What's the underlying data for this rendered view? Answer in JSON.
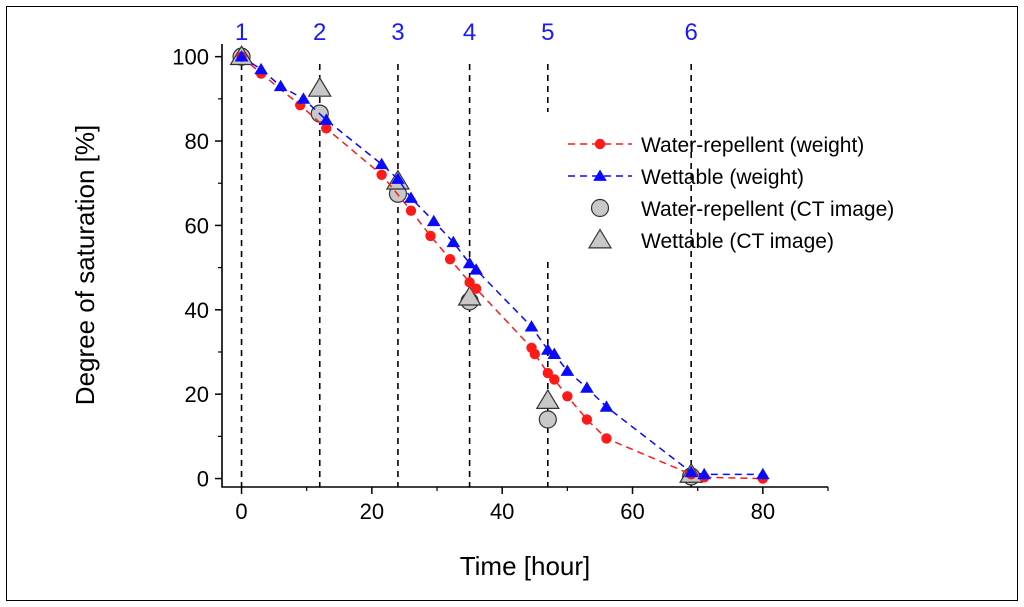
{
  "chart_data": {
    "type": "scatter",
    "title": "",
    "xlabel": "Time [hour]",
    "ylabel": "Degree of saturation [%]",
    "xlim": [
      -3,
      90
    ],
    "ylim": [
      -2,
      103
    ],
    "xticks": [
      0,
      20,
      40,
      60,
      80
    ],
    "yticks": [
      0,
      20,
      40,
      60,
      80,
      100
    ],
    "grid": false,
    "legend_position": "right",
    "stage_lines": [
      {
        "label": "1",
        "x": 0
      },
      {
        "label": "2",
        "x": 12
      },
      {
        "label": "3",
        "x": 24
      },
      {
        "label": "4",
        "x": 35
      },
      {
        "label": "5",
        "x": 47
      },
      {
        "label": "6",
        "x": 69
      }
    ],
    "stage_color": "#1a1aff",
    "series": [
      {
        "name": "Water-repellent (weight)",
        "marker": "circle",
        "line": "dashed",
        "color": "#ff1a1a",
        "x": [
          0,
          3,
          9,
          13,
          21.5,
          26,
          29,
          32,
          35,
          36,
          44.5,
          45,
          47,
          48,
          50,
          53,
          56,
          69,
          71,
          80
        ],
        "y": [
          100,
          96,
          88.5,
          83,
          72,
          63.5,
          57.5,
          52,
          46.5,
          45,
          31,
          29.5,
          25,
          23.5,
          19.5,
          14,
          9.5,
          1,
          0.3,
          0
        ]
      },
      {
        "name": "Wettable (weight)",
        "marker": "triangle",
        "line": "dashed",
        "color": "#0a0aff",
        "x": [
          0,
          3,
          6,
          9.5,
          13,
          21.5,
          24,
          26,
          29.5,
          32.5,
          35,
          36,
          44.5,
          47,
          48,
          50,
          53,
          56,
          69,
          71,
          80
        ],
        "y": [
          100,
          97,
          93,
          90,
          85,
          74.5,
          71,
          66.5,
          61,
          56,
          51,
          49.5,
          36,
          30.5,
          29.5,
          25.5,
          21.5,
          17,
          1.5,
          1,
          1
        ]
      },
      {
        "name": "Water-repellent (CT image)",
        "marker": "circle",
        "line": "none",
        "color": "#c8c8c8",
        "x": [
          0,
          12,
          24,
          35,
          47,
          69
        ],
        "y": [
          100,
          86.5,
          67.5,
          42,
          14,
          0.5
        ]
      },
      {
        "name": "Wettable (CT image)",
        "marker": "triangle",
        "line": "none",
        "color": "#c8c8c8",
        "x": [
          0,
          12,
          24,
          35,
          47,
          69
        ],
        "y": [
          100,
          92.5,
          70.5,
          43,
          18.5,
          1
        ]
      }
    ]
  }
}
